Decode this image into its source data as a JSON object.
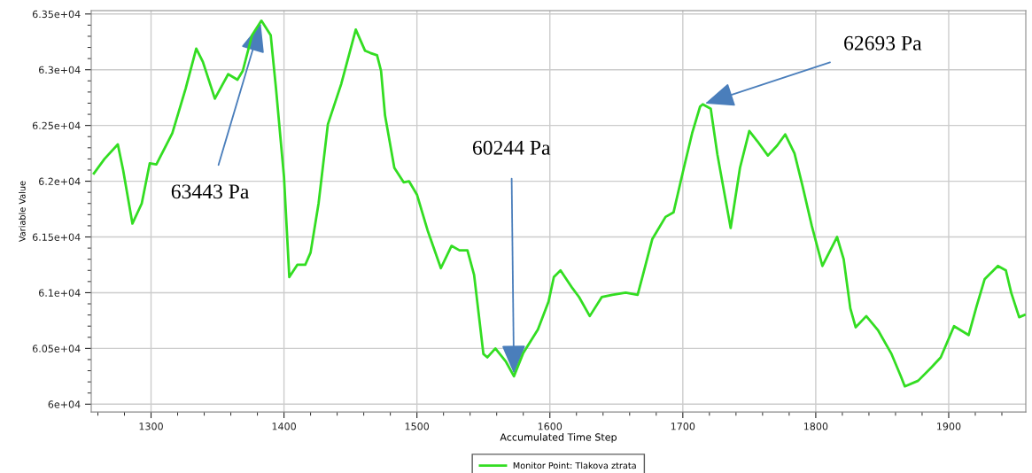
{
  "chart_data": {
    "type": "line",
    "xlabel": "Accumulated Time Step",
    "ylabel": "Variable Value",
    "series": [
      {
        "name": "Monitor Point: Tlakova ztrata",
        "color": "#33dd22",
        "x": [
          1257,
          1265,
          1275,
          1279,
          1286,
          1293,
          1299,
          1304,
          1316,
          1326,
          1334,
          1339,
          1348,
          1358,
          1365,
          1369,
          1376,
          1383,
          1390,
          1394,
          1400,
          1404,
          1410,
          1416,
          1420,
          1426,
          1433,
          1443,
          1454,
          1461,
          1465,
          1470,
          1473,
          1476,
          1483,
          1490,
          1494,
          1500,
          1508,
          1518,
          1526,
          1532,
          1538,
          1543,
          1550,
          1553,
          1559,
          1567,
          1573,
          1580,
          1591,
          1599,
          1603,
          1608,
          1617,
          1622,
          1630,
          1639,
          1647,
          1657,
          1666,
          1670,
          1677,
          1687,
          1693,
          1700,
          1707,
          1713,
          1715,
          1721,
          1726,
          1736,
          1743,
          1750,
          1756,
          1764,
          1771,
          1777,
          1784,
          1790,
          1797,
          1805,
          1816,
          1821,
          1826,
          1830,
          1838,
          1847,
          1857,
          1864,
          1867,
          1877,
          1887,
          1894,
          1904,
          1915,
          1921,
          1927,
          1937,
          1943,
          1947,
          1953,
          1957
        ],
        "values": [
          62070,
          62200,
          62330,
          62100,
          61620,
          61800,
          62160,
          62150,
          62430,
          62830,
          63190,
          63070,
          62740,
          62960,
          62910,
          62990,
          63310,
          63440,
          63310,
          62830,
          62040,
          61140,
          61250,
          61250,
          61360,
          61800,
          62510,
          62870,
          63360,
          63170,
          63150,
          63130,
          62990,
          62590,
          62120,
          61990,
          62000,
          61880,
          61560,
          61220,
          61420,
          61380,
          61380,
          61160,
          60450,
          60420,
          60500,
          60380,
          60250,
          60460,
          60670,
          60920,
          61140,
          61200,
          61040,
          60960,
          60790,
          60960,
          60980,
          61000,
          60980,
          61160,
          61480,
          61680,
          61720,
          62080,
          62430,
          62670,
          62690,
          62650,
          62240,
          61580,
          62120,
          62450,
          62360,
          62230,
          62320,
          62420,
          62250,
          61960,
          61600,
          61240,
          61500,
          61300,
          60860,
          60690,
          60790,
          60660,
          60450,
          60250,
          60160,
          60210,
          60330,
          60420,
          60700,
          60620,
          60880,
          61120,
          61240,
          61200,
          61000,
          60780,
          60800
        ]
      }
    ],
    "xlim": [
      1255,
      1958
    ],
    "ylim": [
      59930,
      63530
    ],
    "xticks": [
      {
        "value": 1260,
        "label": null
      },
      {
        "value": 1280,
        "label": null
      },
      1300,
      {
        "value": 1320,
        "label": null
      },
      {
        "value": 1340,
        "label": null
      },
      {
        "value": 1360,
        "label": null
      },
      {
        "value": 1380,
        "label": null
      },
      1400,
      {
        "value": 1420,
        "label": null
      },
      {
        "value": 1440,
        "label": null
      },
      {
        "value": 1460,
        "label": null
      },
      {
        "value": 1480,
        "label": null
      },
      1500,
      {
        "value": 1520,
        "label": null
      },
      {
        "value": 1540,
        "label": null
      },
      {
        "value": 1560,
        "label": null
      },
      {
        "value": 1580,
        "label": null
      },
      1600,
      {
        "value": 1620,
        "label": null
      },
      {
        "value": 1640,
        "label": null
      },
      {
        "value": 1660,
        "label": null
      },
      {
        "value": 1680,
        "label": null
      },
      1700,
      {
        "value": 1720,
        "label": null
      },
      {
        "value": 1740,
        "label": null
      },
      {
        "value": 1760,
        "label": null
      },
      {
        "value": 1780,
        "label": null
      },
      1800,
      {
        "value": 1820,
        "label": null
      },
      {
        "value": 1840,
        "label": null
      },
      {
        "value": 1860,
        "label": null
      },
      {
        "value": 1880,
        "label": null
      },
      1900,
      {
        "value": 1920,
        "label": null
      },
      {
        "value": 1940,
        "label": null
      }
    ],
    "yticks": [
      {
        "value": 60000,
        "label": "6e+04"
      },
      {
        "value": 60100,
        "label": null
      },
      {
        "value": 60200,
        "label": null
      },
      {
        "value": 60300,
        "label": null
      },
      {
        "value": 60400,
        "label": null
      },
      {
        "value": 60500,
        "label": "6.05e+04"
      },
      {
        "value": 60600,
        "label": null
      },
      {
        "value": 60700,
        "label": null
      },
      {
        "value": 60800,
        "label": null
      },
      {
        "value": 60900,
        "label": null
      },
      {
        "value": 61000,
        "label": "6.1e+04"
      },
      {
        "value": 61100,
        "label": null
      },
      {
        "value": 61200,
        "label": null
      },
      {
        "value": 61300,
        "label": null
      },
      {
        "value": 61400,
        "label": null
      },
      {
        "value": 61500,
        "label": "6.15e+04"
      },
      {
        "value": 61600,
        "label": null
      },
      {
        "value": 61700,
        "label": null
      },
      {
        "value": 61800,
        "label": null
      },
      {
        "value": 61900,
        "label": null
      },
      {
        "value": 62000,
        "label": "6.2e+04"
      },
      {
        "value": 62100,
        "label": null
      },
      {
        "value": 62200,
        "label": null
      },
      {
        "value": 62300,
        "label": null
      },
      {
        "value": 62400,
        "label": null
      },
      {
        "value": 62500,
        "label": "6.25e+04"
      },
      {
        "value": 62600,
        "label": null
      },
      {
        "value": 62700,
        "label": null
      },
      {
        "value": 62800,
        "label": null
      },
      {
        "value": 62900,
        "label": null
      },
      {
        "value": 63000,
        "label": "6.3e+04"
      },
      {
        "value": 63100,
        "label": null
      },
      {
        "value": 63200,
        "label": null
      },
      {
        "value": 63300,
        "label": null
      },
      {
        "value": 63400,
        "label": null
      },
      {
        "value": 63500,
        "label": "6.35e+04"
      }
    ],
    "grid": true,
    "legend": "bottom",
    "marker": "none",
    "line_style": "solid",
    "annotations": [
      {
        "text": "63443 Pa",
        "x": 1383,
        "y": 63440
      },
      {
        "text": "60244 Pa",
        "x": 1573,
        "y": 60250
      },
      {
        "text": "62693 Pa",
        "x": 1715,
        "y": 62690
      }
    ]
  }
}
